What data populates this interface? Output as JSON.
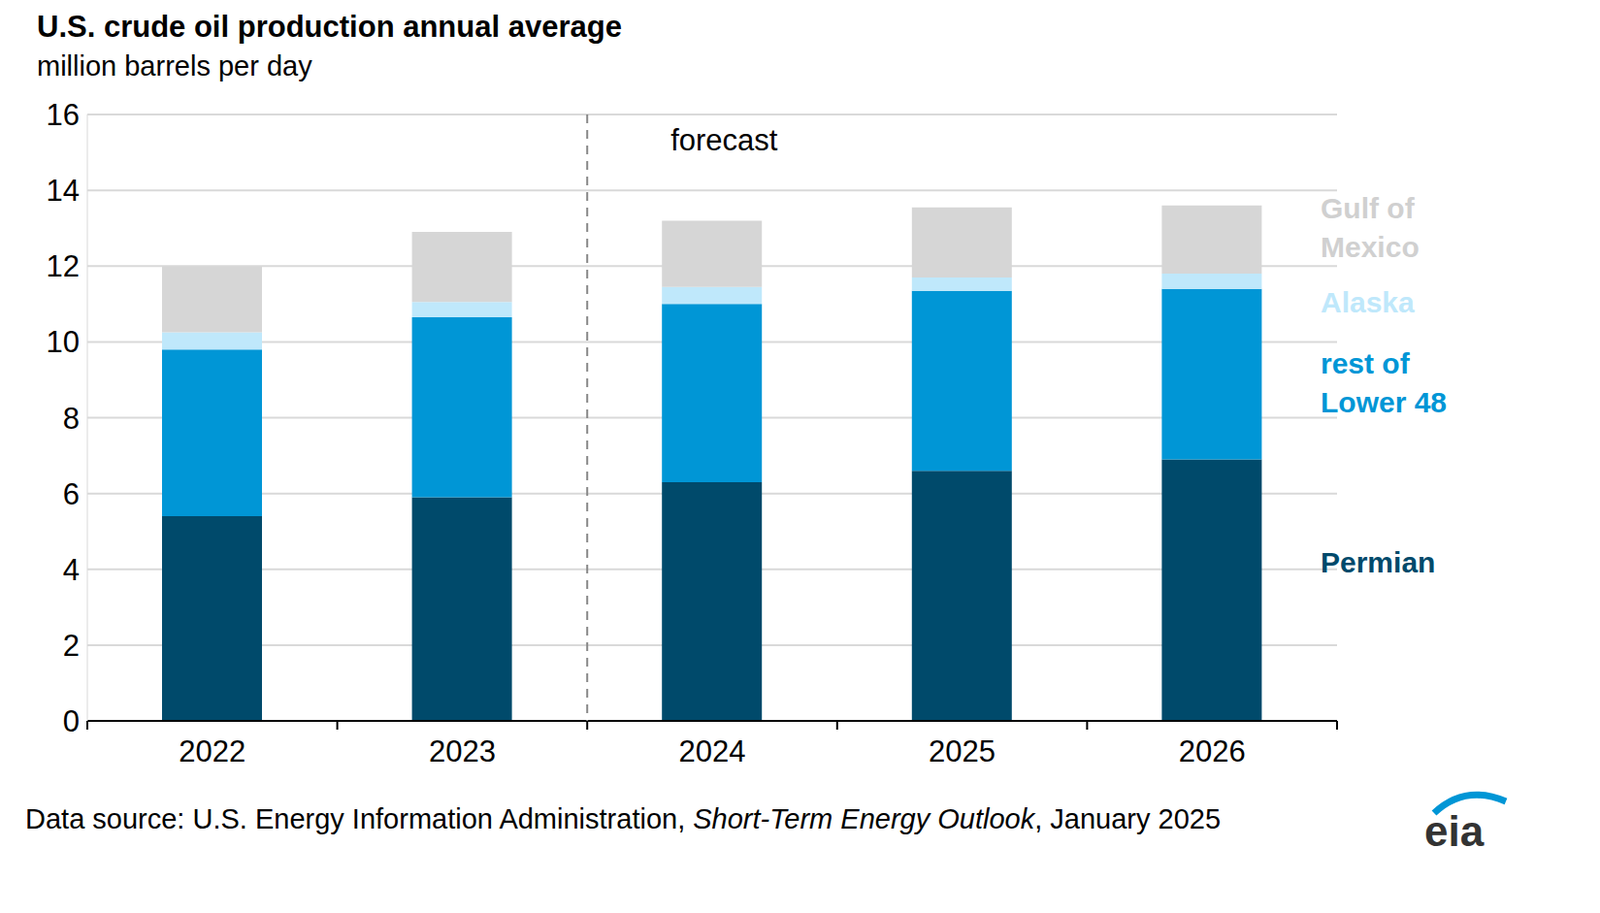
{
  "chart_data": {
    "type": "bar",
    "title": "U.S. crude oil production annual average",
    "subtitle": "million barrels per day",
    "categories": [
      "2022",
      "2023",
      "2024",
      "2025",
      "2026"
    ],
    "series": [
      {
        "name": "Permian",
        "color": "#004a6b",
        "values": [
          5.4,
          5.9,
          6.3,
          6.6,
          6.9
        ]
      },
      {
        "name": "rest of Lower 48",
        "color": "#0096d6",
        "values": [
          4.4,
          4.75,
          4.7,
          4.75,
          4.5
        ]
      },
      {
        "name": "Alaska",
        "color": "#bfe8fb",
        "values": [
          0.45,
          0.4,
          0.45,
          0.35,
          0.4
        ]
      },
      {
        "name": "Gulf of Mexico",
        "color": "#d6d6d6",
        "values": [
          1.75,
          1.85,
          1.75,
          1.85,
          1.8
        ]
      }
    ],
    "ylim": [
      0,
      16
    ],
    "yticks": [
      0,
      2,
      4,
      6,
      8,
      10,
      12,
      14,
      16
    ],
    "grid": true,
    "stacked": true,
    "annotations": [
      {
        "text": "forecast",
        "x": "2024"
      }
    ],
    "source": [
      "Data source: U.S. Energy Information Administration, ",
      "Short-Term Energy Outlook",
      ", January 2025"
    ],
    "logo": "eia"
  }
}
